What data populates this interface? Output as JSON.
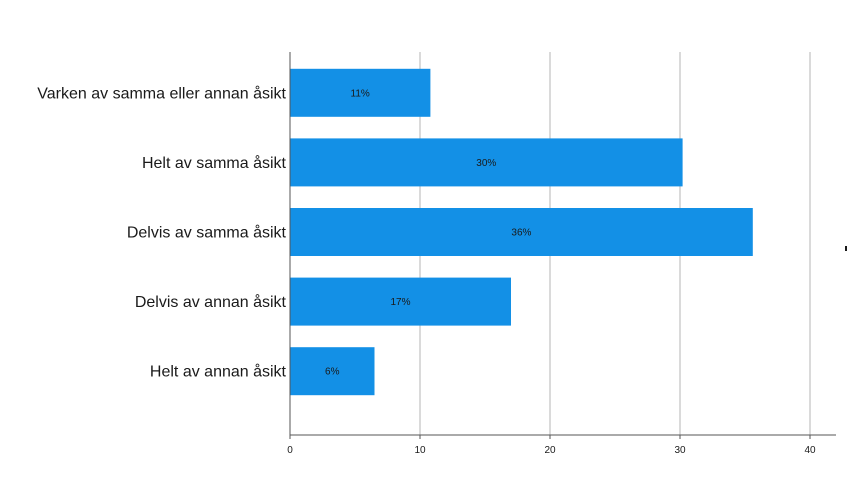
{
  "chart_data": {
    "type": "bar",
    "orientation": "horizontal",
    "categories": [
      "Varken av samma eller annan åsikt",
      "Helt av samma åsikt",
      "Delvis av samma åsikt",
      "Delvis av annan åsikt",
      "Helt av annan åsikt"
    ],
    "values": [
      10.8,
      30.2,
      35.6,
      17.0,
      6.5
    ],
    "data_labels": [
      "11%",
      "30%",
      "36%",
      "17%",
      "6%"
    ],
    "x_ticks": [
      "0",
      "10",
      "20",
      "30",
      "40"
    ],
    "xlim": [
      0,
      42
    ],
    "grid": true,
    "bar_color": "#1390e6"
  }
}
